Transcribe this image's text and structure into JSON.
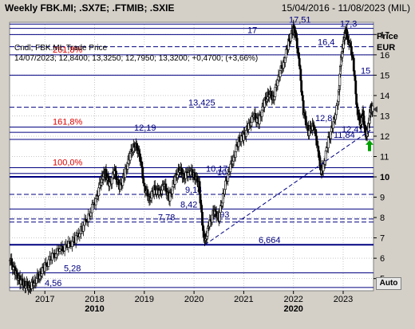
{
  "header": {
    "title": "Weekly FBK.MI; .SX7E; .FTMIB; .SXIE",
    "date_range": "15/04/2016 - 11/08/2023 (MIL)"
  },
  "legend": {
    "line1": "Cndl; FBK.MI; Trade Price",
    "line2": "14/07/2023; 12,8400; 13,3250; 12,7950; 13,3200; +0,4700; (+3,66%)"
  },
  "axis": {
    "y_title": "Price",
    "y_unit": "EUR",
    "y_ticks": [
      "5",
      "6",
      "7",
      "8",
      "9",
      "10",
      "11",
      "12",
      "13",
      "14",
      "15",
      "16",
      "17"
    ],
    "x_ticks": [
      "2017",
      "2018",
      "2019",
      "2020",
      "2021",
      "2022",
      "2023"
    ],
    "x_major": [
      "2010",
      "2020"
    ],
    "auto_label": "Auto"
  },
  "colors": {
    "navy": "#000080",
    "red": "#e00000",
    "green": "#00a000",
    "plot_bg": "#ffffff"
  },
  "chart_data": {
    "type": "candlestick",
    "ylim": [
      4.4,
      17.6
    ],
    "xlim": [
      2016.29,
      2023.61
    ],
    "series": [
      {
        "name": "FBK.MI",
        "points": [
          [
            2016.3,
            5.9
          ],
          [
            2016.4,
            5.3
          ],
          [
            2016.5,
            4.9
          ],
          [
            2016.6,
            4.7
          ],
          [
            2016.7,
            4.6
          ],
          [
            2016.8,
            4.9
          ],
          [
            2016.9,
            5.2
          ],
          [
            2017.0,
            5.6
          ],
          [
            2017.15,
            6.1
          ],
          [
            2017.3,
            6.4
          ],
          [
            2017.45,
            6.6
          ],
          [
            2017.6,
            6.9
          ],
          [
            2017.75,
            7.5
          ],
          [
            2017.9,
            8.2
          ],
          [
            2018.05,
            9.1
          ],
          [
            2018.15,
            10.0
          ],
          [
            2018.22,
            10.2
          ],
          [
            2018.3,
            9.6
          ],
          [
            2018.4,
            10.3
          ],
          [
            2018.5,
            9.4
          ],
          [
            2018.6,
            10.1
          ],
          [
            2018.7,
            11.0
          ],
          [
            2018.8,
            11.6
          ],
          [
            2018.9,
            11.2
          ],
          [
            2019.0,
            9.5
          ],
          [
            2019.1,
            8.9
          ],
          [
            2019.2,
            9.4
          ],
          [
            2019.3,
            9.2
          ],
          [
            2019.4,
            9.6
          ],
          [
            2019.5,
            8.9
          ],
          [
            2019.6,
            9.8
          ],
          [
            2019.7,
            10.4
          ],
          [
            2019.8,
            10.0
          ],
          [
            2019.9,
            10.3
          ],
          [
            2020.0,
            10.1
          ],
          [
            2020.1,
            9.6
          ],
          [
            2020.18,
            7.4
          ],
          [
            2020.22,
            6.8
          ],
          [
            2020.3,
            7.6
          ],
          [
            2020.4,
            8.3
          ],
          [
            2020.5,
            8.0
          ],
          [
            2020.6,
            9.3
          ],
          [
            2020.7,
            10.3
          ],
          [
            2020.8,
            11.0
          ],
          [
            2020.9,
            11.8
          ],
          [
            2021.0,
            12.0
          ],
          [
            2021.1,
            12.5
          ],
          [
            2021.2,
            13.0
          ],
          [
            2021.3,
            12.7
          ],
          [
            2021.4,
            13.6
          ],
          [
            2021.5,
            14.1
          ],
          [
            2021.6,
            13.9
          ],
          [
            2021.7,
            15.0
          ],
          [
            2021.8,
            15.6
          ],
          [
            2021.9,
            16.6
          ],
          [
            2022.0,
            17.3
          ],
          [
            2022.05,
            16.9
          ],
          [
            2022.12,
            15.5
          ],
          [
            2022.2,
            13.2
          ],
          [
            2022.3,
            12.2
          ],
          [
            2022.4,
            12.6
          ],
          [
            2022.5,
            11.3
          ],
          [
            2022.55,
            10.3
          ],
          [
            2022.6,
            10.5
          ],
          [
            2022.7,
            11.8
          ],
          [
            2022.8,
            12.6
          ],
          [
            2022.9,
            13.7
          ],
          [
            2022.95,
            15.6
          ],
          [
            2023.0,
            16.5
          ],
          [
            2023.05,
            17.2
          ],
          [
            2023.1,
            16.8
          ],
          [
            2023.2,
            15.8
          ],
          [
            2023.28,
            13.3
          ],
          [
            2023.35,
            12.6
          ],
          [
            2023.4,
            13.1
          ],
          [
            2023.45,
            12.0
          ],
          [
            2023.5,
            12.3
          ],
          [
            2023.55,
            13.32
          ]
        ]
      }
    ],
    "horizontal_levels": [
      {
        "value": 17.51,
        "label": "17,51"
      },
      {
        "value": 17.3,
        "label": "17,3"
      },
      {
        "value": 17.0,
        "label": "17"
      },
      {
        "value": 16.4,
        "label": "16,4"
      },
      {
        "value": 15.0,
        "label": "15"
      },
      {
        "value": 13.425,
        "label": "13,425"
      },
      {
        "value": 12.19,
        "label": "12,19"
      },
      {
        "value": 11.84,
        "label": "11,84"
      },
      {
        "value": 10.17,
        "label": "10,17"
      },
      {
        "value": 10.0,
        "label": "10"
      },
      {
        "value": 9.14,
        "label": "9,14"
      },
      {
        "value": 8.42,
        "label": "8,42"
      },
      {
        "value": 7.93,
        "label": "7,93"
      },
      {
        "value": 7.78,
        "label": "7,78"
      },
      {
        "value": 6.664,
        "label": "6,664"
      },
      {
        "value": 5.28,
        "label": "5,28"
      },
      {
        "value": 4.56,
        "label": "4,56"
      }
    ],
    "fib_levels": [
      {
        "value": 16.0,
        "label": "261,8%"
      },
      {
        "value": 12.45,
        "label": "161,8%"
      },
      {
        "value": 10.45,
        "label": "100,0%"
      }
    ],
    "extra_labels": [
      "12,8",
      "12,4",
      "12"
    ],
    "trendline": [
      [
        2020.22,
        6.664
      ],
      [
        2023.55,
        12.3
      ]
    ],
    "last_price": 13.32,
    "grid": true,
    "legend_position": "top-left"
  }
}
